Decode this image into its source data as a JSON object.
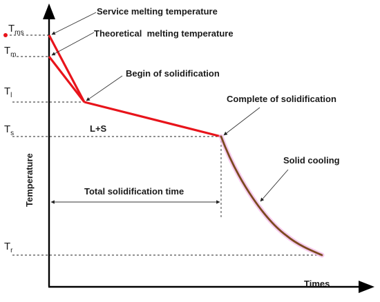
{
  "diagram": {
    "y_axis_label": "Temperature",
    "x_axis_label": "Times",
    "temperature_levels": [
      {
        "main": "T",
        "sub": "ms"
      },
      {
        "main": "T",
        "sub": "m"
      },
      {
        "main": "T",
        "sub": "l"
      },
      {
        "main": "T",
        "sub": "s"
      },
      {
        "main": "T",
        "sub": "r"
      }
    ],
    "annotations": {
      "service_melting": "Service melting temperature",
      "theoretical_melting": "Theoretical  melting temperature",
      "begin_solidification": "Begin of solidification",
      "complete_solidification": "Complete of solidification",
      "solid_cooling": "Solid cooling",
      "mushy_zone": "L+S",
      "total_time": "Total solidification time"
    },
    "colors": {
      "liquid_cooling_curve": "#e8141b",
      "solid_cooling_curve": "#7b4a1f",
      "solid_cooling_glow": "#f2b3e6",
      "service_marker": "#e8141b"
    }
  }
}
